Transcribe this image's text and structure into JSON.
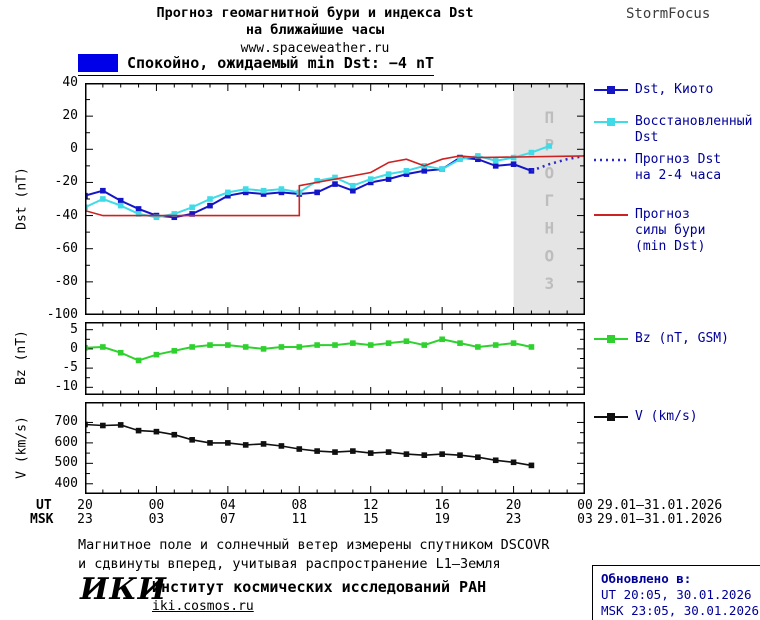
{
  "header": {
    "title_line1": "Прогноз геомагнитной бури и индекса Dst",
    "title_line2": "на ближайшие часы",
    "site": "www.spaceweather.ru",
    "brand": "StormFocus"
  },
  "status": {
    "text": "Спокойно, ожидаемый min Dst: −4 nT",
    "swatch_color": "#0000e8"
  },
  "chart_data": [
    {
      "type": "line",
      "title": "Dst index forecast",
      "ylabel": "Dst (nT)",
      "xlim": [
        0,
        28
      ],
      "ylim": [
        -100,
        40
      ],
      "yticks": [
        40,
        20,
        0,
        -20,
        -40,
        -60,
        -80,
        -100
      ],
      "xticks_hours": [
        0,
        4,
        8,
        12,
        16,
        20,
        24,
        28
      ],
      "forecast_shade": {
        "from": 24,
        "to": 28,
        "label": "ПРОГНОЗ",
        "fill": "#e4e4e4",
        "text_color": "#bdbdbd"
      },
      "series": [
        {
          "name": "Dst, Киото",
          "color": "#1515c8",
          "marker": true,
          "width": 2,
          "x": [
            0,
            1,
            2,
            3,
            4,
            5,
            6,
            7,
            8,
            9,
            10,
            11,
            12,
            13,
            14,
            15,
            16,
            17,
            18,
            19,
            20,
            21,
            22,
            23,
            24,
            25
          ],
          "y": [
            -28,
            -25,
            -31,
            -36,
            -40,
            -41,
            -39,
            -34,
            -28,
            -26,
            -27,
            -26,
            -27,
            -26,
            -21,
            -25,
            -20,
            -18,
            -15,
            -13,
            -12,
            -5,
            -6,
            -10,
            -9,
            -13
          ]
        },
        {
          "name": "Восстановленный Dst",
          "color": "#3fdce8",
          "marker": true,
          "width": 2,
          "x": [
            0,
            1,
            2,
            3,
            4,
            5,
            6,
            7,
            8,
            9,
            10,
            11,
            12,
            13,
            14,
            15,
            16,
            17,
            18,
            19,
            20,
            21,
            22,
            23,
            24,
            25,
            26
          ],
          "y": [
            -35,
            -30,
            -34,
            -39,
            -41,
            -39,
            -35,
            -30,
            -26,
            -24,
            -25,
            -24,
            -26,
            -19,
            -17,
            -22,
            -18,
            -15,
            -13,
            -10,
            -12,
            -6,
            -4,
            -7,
            -5,
            -2,
            2
          ]
        },
        {
          "name": "Прогноз Dst на 2-4 часа",
          "color": "#2a2ac8",
          "dash": "2,4",
          "width": 2.5,
          "x": [
            25,
            26,
            27,
            28
          ],
          "y": [
            -13,
            -9,
            -6,
            -4
          ]
        },
        {
          "name": "Прогноз силы бури (min Dst)",
          "color": "#cc2222",
          "width": 1.6,
          "x": [
            0,
            1,
            12,
            12,
            13,
            14,
            16,
            17,
            18,
            19,
            20,
            21,
            22,
            28
          ],
          "y": [
            -37,
            -40,
            -40,
            -22,
            -20,
            -18,
            -14,
            -8,
            -6,
            -10,
            -6,
            -4,
            -5,
            -4
          ]
        }
      ]
    },
    {
      "type": "line",
      "title": "Bz GSM",
      "ylabel": "Bz (nT)",
      "xlim": [
        0,
        28
      ],
      "ylim": [
        -12,
        7
      ],
      "yticks": [
        5,
        0,
        -5,
        -10
      ],
      "xticks_hours": [
        0,
        4,
        8,
        12,
        16,
        20,
        24,
        28
      ],
      "series": [
        {
          "name": "Bz (nT, GSM)",
          "color": "#2fd12f",
          "marker": true,
          "width": 2,
          "x": [
            0,
            1,
            2,
            3,
            4,
            5,
            6,
            7,
            8,
            9,
            10,
            11,
            12,
            13,
            14,
            15,
            16,
            17,
            18,
            19,
            20,
            21,
            22,
            23,
            24,
            25
          ],
          "y": [
            0.3,
            0.5,
            -1,
            -3,
            -1.5,
            -0.5,
            0.5,
            1,
            1,
            0.5,
            0,
            0.5,
            0.5,
            1,
            1,
            1.5,
            1,
            1.5,
            2,
            1,
            2.5,
            1.5,
            0.5,
            1,
            1.5,
            0.5
          ]
        }
      ]
    },
    {
      "type": "line",
      "title": "Solar wind speed",
      "ylabel": "V (km/s)",
      "xlim": [
        0,
        28
      ],
      "ylim": [
        350,
        800
      ],
      "yticks": [
        700,
        600,
        500,
        400
      ],
      "xticks_hours": [
        0,
        4,
        8,
        12,
        16,
        20,
        24,
        28
      ],
      "series": [
        {
          "name": "V (km/s)",
          "color": "#101010",
          "marker": true,
          "width": 1.6,
          "x": [
            0,
            1,
            2,
            3,
            4,
            5,
            6,
            7,
            8,
            9,
            10,
            11,
            12,
            13,
            14,
            15,
            16,
            17,
            18,
            19,
            20,
            21,
            22,
            23,
            24,
            25
          ],
          "y": [
            690,
            685,
            688,
            660,
            655,
            640,
            615,
            600,
            600,
            590,
            595,
            585,
            570,
            560,
            555,
            560,
            550,
            555,
            545,
            540,
            545,
            540,
            530,
            515,
            505,
            490
          ]
        }
      ]
    }
  ],
  "legend": {
    "dst": [
      {
        "label": "Dst, Киото",
        "color": "#1515c8",
        "style": "line-square"
      },
      {
        "label": "Восстановленный\nDst",
        "color": "#3fdce8",
        "style": "line-square"
      },
      {
        "label": "Прогноз Dst\nна 2-4 часа",
        "color": "#2a2ac8",
        "style": "dotted-line"
      },
      {
        "label": "Прогноз\nсилы бури\n(min Dst)",
        "color": "#cc2222",
        "style": "line"
      }
    ],
    "bz": {
      "label": "Bz (nT, GSM)",
      "color": "#2fd12f",
      "style": "line-square"
    },
    "v": {
      "label": "V (km/s)",
      "color": "#101010",
      "style": "line-square"
    }
  },
  "xaxis": {
    "ut_label": "UT",
    "msk_label": "MSK",
    "ut_ticks": [
      "20",
      "00",
      "04",
      "08",
      "12",
      "16",
      "20",
      "00"
    ],
    "msk_ticks": [
      "23",
      "03",
      "07",
      "11",
      "15",
      "19",
      "23",
      "03"
    ],
    "ut_dates": "29.01–31.01.2026",
    "msk_dates": "29.01–31.01.2026"
  },
  "footer": {
    "note_line1": "Магнитное поле и солнечный ветер измерены спутником DSCOVR",
    "note_line2": "и сдвинуты вперед, учитывая распространение L1–Земля",
    "logo": "ИКИ",
    "institute": "Институт космических исследований РАН",
    "site": "iki.cosmos.ru",
    "updated_label": "Обновлено в:",
    "updated_ut": "UT  20:05, 30.01.2026",
    "updated_msk": "MSK 23:05, 30.01.2026"
  }
}
